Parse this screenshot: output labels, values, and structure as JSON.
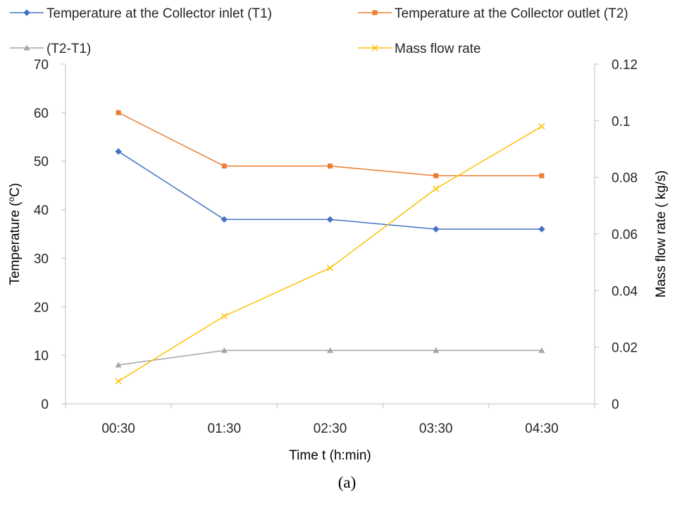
{
  "chart_data": {
    "type": "line",
    "categories": [
      "00:30",
      "01:30",
      "02:30",
      "03:30",
      "04:30"
    ],
    "xlabel": "Time t (h:min)",
    "ylabel": "Temperature (",
    "ylabel_sup": "o",
    "ylabel_suffix": "C)",
    "y2label": "Mass flow rate ( kg/s)",
    "ylim": [
      0,
      70
    ],
    "y2lim": [
      0,
      0.12
    ],
    "yticks": [
      "0",
      "10",
      "20",
      "30",
      "40",
      "50",
      "60",
      "70"
    ],
    "y2ticks": [
      "0",
      "0.02",
      "0.04",
      "0.06",
      "0.08",
      "0.1",
      "0.12"
    ],
    "grid": false,
    "legend_position": "top",
    "series": [
      {
        "name": "Temperature at the Collector inlet (T1)",
        "axis": "left",
        "marker": "diamond",
        "color": "#4472C4",
        "values": [
          52,
          38,
          38,
          36,
          36
        ]
      },
      {
        "name": "Temperature at the Collector outlet (T2)",
        "axis": "left",
        "marker": "square",
        "color": "#ED7D31",
        "values": [
          60,
          49,
          49,
          47,
          47
        ]
      },
      {
        "name": "(T2-T1)",
        "axis": "left",
        "marker": "triangle",
        "color": "#A5A5A5",
        "values": [
          8,
          11,
          11,
          11,
          11
        ]
      },
      {
        "name": "Mass flow rate",
        "axis": "right",
        "marker": "x",
        "color": "#FFC000",
        "values": [
          0.008,
          0.031,
          0.048,
          0.076,
          0.098
        ]
      }
    ]
  },
  "caption": "(a)"
}
